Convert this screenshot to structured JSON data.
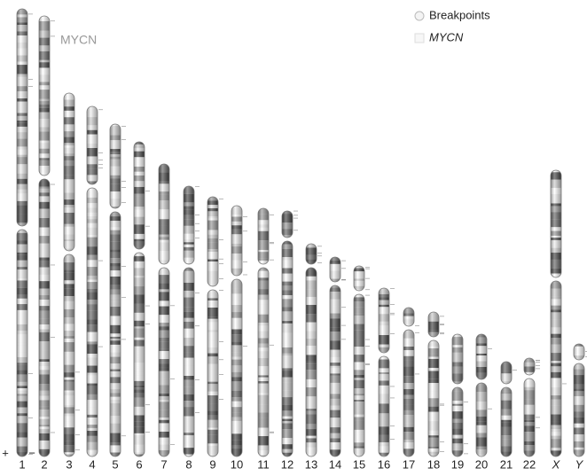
{
  "annotation": "MYCN",
  "legend": [
    {
      "label": "Breakpoints"
    },
    {
      "label": "MYCN"
    }
  ],
  "strand_labels": [
    "+",
    "−"
  ],
  "chromosomes": [
    {
      "label": "1"
    },
    {
      "label": "2"
    },
    {
      "label": "3"
    },
    {
      "label": "4"
    },
    {
      "label": "5"
    },
    {
      "label": "6"
    },
    {
      "label": "7"
    },
    {
      "label": "8"
    },
    {
      "label": "9"
    },
    {
      "label": "10"
    },
    {
      "label": "11"
    },
    {
      "label": "12"
    },
    {
      "label": "13"
    },
    {
      "label": "14"
    },
    {
      "label": "15"
    },
    {
      "label": "16"
    },
    {
      "label": "17"
    },
    {
      "label": "18"
    },
    {
      "label": "19"
    },
    {
      "label": "20"
    },
    {
      "label": "21"
    },
    {
      "label": "22"
    },
    {
      "label": "X"
    },
    {
      "label": "Y"
    }
  ]
}
